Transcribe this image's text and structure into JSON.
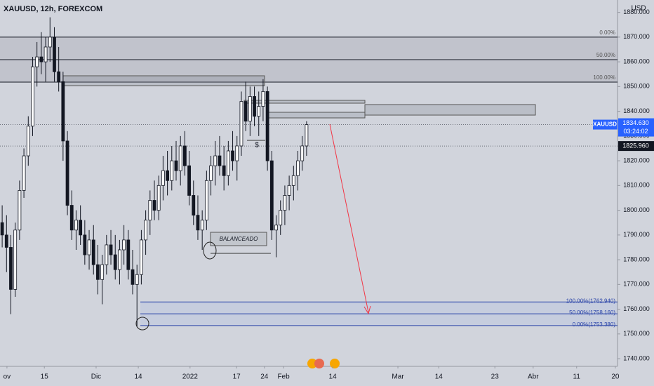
{
  "chart_data": {
    "type": "candlestick",
    "title": "XAUUSD, 12h, FOREXCOM",
    "currency": "USD",
    "open": [
      1795,
      1790,
      1785,
      1768,
      1792,
      1808,
      1822,
      1834,
      1858,
      1862,
      1860,
      1866,
      1870,
      1856,
      1852,
      1828,
      1802,
      1792,
      1796,
      1790,
      1782,
      1788,
      1778,
      1772,
      1778,
      1786,
      1782,
      1776,
      1784,
      1788,
      1776,
      1770,
      1774,
      1788,
      1796,
      1804,
      1800,
      1810,
      1816,
      1812,
      1820,
      1816,
      1826,
      1818,
      1806,
      1798,
      1792,
      1796,
      1812,
      1818,
      1822,
      1818,
      1814,
      1824,
      1820,
      1826,
      1844,
      1836,
      1846,
      1838,
      1842,
      1848,
      1820,
      1792,
      1794,
      1800,
      1806,
      1810,
      1814,
      1820,
      1826
    ],
    "high": [
      1802,
      1798,
      1790,
      1795,
      1812,
      1825,
      1838,
      1862,
      1868,
      1872,
      1870,
      1878,
      1874,
      1866,
      1856,
      1832,
      1808,
      1800,
      1802,
      1796,
      1792,
      1794,
      1786,
      1782,
      1790,
      1792,
      1790,
      1788,
      1794,
      1792,
      1784,
      1778,
      1792,
      1800,
      1808,
      1812,
      1814,
      1822,
      1824,
      1826,
      1828,
      1830,
      1832,
      1824,
      1812,
      1806,
      1800,
      1816,
      1822,
      1828,
      1830,
      1826,
      1828,
      1832,
      1830,
      1848,
      1852,
      1850,
      1850,
      1848,
      1853,
      1850,
      1824,
      1798,
      1804,
      1810,
      1814,
      1818,
      1824,
      1830,
      1836
    ],
    "low": [
      1785,
      1775,
      1758,
      1765,
      1788,
      1805,
      1818,
      1830,
      1850,
      1855,
      1852,
      1860,
      1852,
      1848,
      1820,
      1798,
      1788,
      1784,
      1786,
      1778,
      1776,
      1774,
      1766,
      1762,
      1774,
      1778,
      1772,
      1770,
      1778,
      1772,
      1766,
      1753,
      1770,
      1782,
      1790,
      1796,
      1796,
      1804,
      1806,
      1808,
      1812,
      1810,
      1814,
      1802,
      1794,
      1788,
      1784,
      1792,
      1806,
      1810,
      1814,
      1808,
      1810,
      1816,
      1812,
      1822,
      1832,
      1830,
      1834,
      1830,
      1836,
      1816,
      1788,
      1781,
      1790,
      1794,
      1800,
      1804,
      1808,
      1816,
      1822
    ],
    "close": [
      1790,
      1785,
      1768,
      1792,
      1808,
      1822,
      1834,
      1858,
      1862,
      1860,
      1866,
      1870,
      1856,
      1852,
      1828,
      1802,
      1792,
      1796,
      1790,
      1782,
      1788,
      1778,
      1772,
      1778,
      1786,
      1782,
      1776,
      1784,
      1788,
      1776,
      1770,
      1774,
      1788,
      1796,
      1804,
      1800,
      1810,
      1816,
      1812,
      1820,
      1816,
      1826,
      1818,
      1806,
      1798,
      1792,
      1796,
      1812,
      1818,
      1822,
      1818,
      1814,
      1824,
      1820,
      1826,
      1844,
      1836,
      1846,
      1838,
      1842,
      1848,
      1820,
      1792,
      1794,
      1800,
      1806,
      1810,
      1814,
      1820,
      1826,
      1834.63
    ],
    "up_color": "#ffffff",
    "down_color": "#131722",
    "xlim": [
      -0.5,
      141.5
    ],
    "xticks": [
      {
        "value": 1.1,
        "label": "ov"
      },
      {
        "value": 9.7,
        "label": "15"
      },
      {
        "value": 21.6,
        "label": "Dic"
      },
      {
        "value": 31.3,
        "label": "14"
      },
      {
        "value": 43.2,
        "label": "2022"
      },
      {
        "value": 53.9,
        "label": "17"
      },
      {
        "value": 60.3,
        "label": "24"
      },
      {
        "value": 64.7,
        "label": "Feb"
      },
      {
        "value": 76,
        "label": "14"
      },
      {
        "value": 91,
        "label": "Mar"
      },
      {
        "value": 100.4,
        "label": "14"
      },
      {
        "value": 113.3,
        "label": "23"
      },
      {
        "value": 122.1,
        "label": "Abr"
      },
      {
        "value": 132.1,
        "label": "11"
      },
      {
        "value": 141,
        "label": "20"
      }
    ],
    "ylim": [
      1736.9,
      1885
    ],
    "yticks": [
      {
        "value": 1740,
        "label": "1740.000"
      },
      {
        "value": 1750,
        "label": "1750.000"
      },
      {
        "value": 1760,
        "label": "1760.000"
      },
      {
        "value": 1770,
        "label": "1770.000"
      },
      {
        "value": 1780,
        "label": "1780.000"
      },
      {
        "value": 1790,
        "label": "1790.000"
      },
      {
        "value": 1800,
        "label": "1800.000"
      },
      {
        "value": 1810,
        "label": "1810.000"
      },
      {
        "value": 1820,
        "label": "1820.000"
      },
      {
        "value": 1830,
        "label": "1830.000"
      },
      {
        "value": 1840,
        "label": "1840.000"
      },
      {
        "value": 1850,
        "label": "1850.000"
      },
      {
        "value": 1860,
        "label": "1860.000"
      },
      {
        "value": 1870,
        "label": "1870.000"
      },
      {
        "value": 1880,
        "label": "1880.000"
      }
    ],
    "price_badge": {
      "symbol": "XAUUSD",
      "price": {
        "value": 1834.63,
        "label": "1834.630"
      },
      "countdown": "03:24:02"
    },
    "second_price": {
      "value": 1825.96,
      "label": "1825.960"
    },
    "annotations": {
      "balance": "BALANCEADO",
      "dollar": "$",
      "fib_upper": [
        {
          "value": 1870,
          "label": "0.00%"
        },
        {
          "value": 1860.9,
          "label": "50.00%"
        },
        {
          "value": 1851.8,
          "label": "100.00%"
        }
      ],
      "fib_lower": [
        {
          "value": 1762.94,
          "label": "100.00%(1762.940)"
        },
        {
          "value": 1758.16,
          "label": "50.00%(1758.160)"
        },
        {
          "value": 1753.38,
          "label": "0.00%(1753.380)"
        }
      ]
    }
  }
}
